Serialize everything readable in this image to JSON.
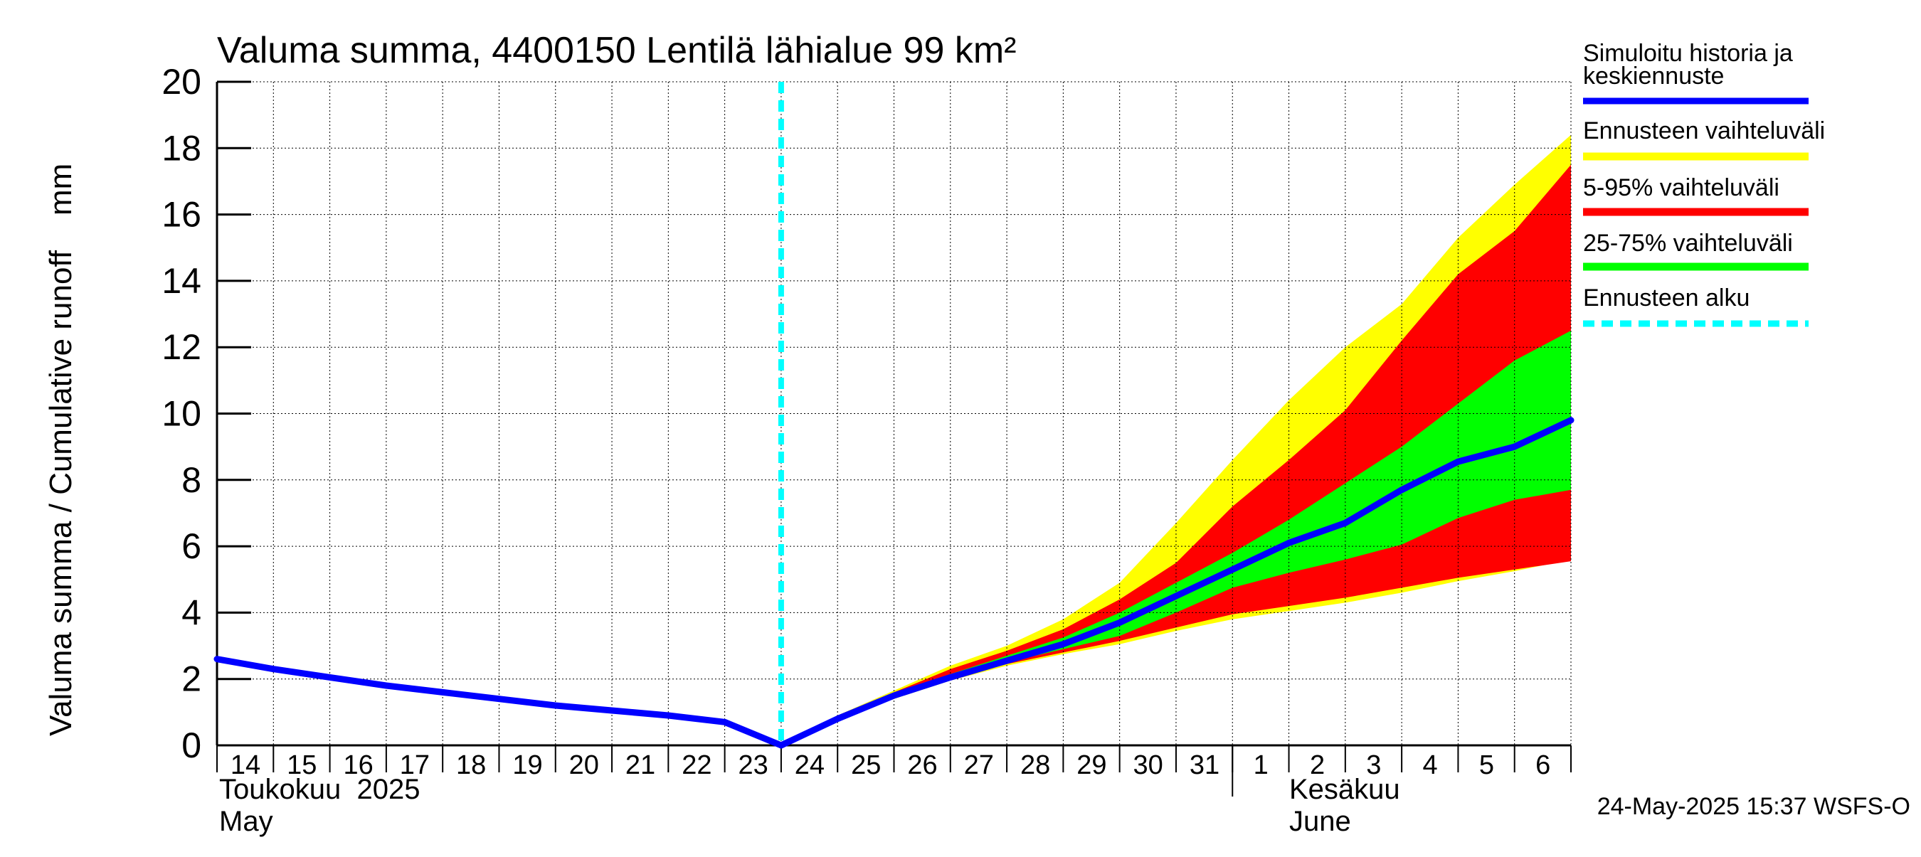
{
  "chart_data": {
    "type": "area",
    "title": "Valuma summa, 4400150 Lentilä lähialue 99 km²",
    "ylabel": "Valuma summa / Cumulative runoff    mm",
    "ylim": [
      0,
      20
    ],
    "y_ticks": [
      "0",
      "2",
      "4",
      "6",
      "8",
      "10",
      "12",
      "14",
      "16",
      "18",
      "20"
    ],
    "x_tick_labels": [
      "14",
      "15",
      "16",
      "17",
      "18",
      "19",
      "20",
      "21",
      "22",
      "23",
      "24",
      "25",
      "26",
      "27",
      "28",
      "29",
      "30",
      "31",
      "1",
      "2",
      "3",
      "4",
      "5",
      "6"
    ],
    "x_day_range": [
      14,
      38
    ],
    "month_labels": {
      "may_fi": "Toukokuu  2025",
      "may_en": "May",
      "june_fi": "Kesäkuu",
      "june_en": "June"
    },
    "grid": true,
    "legend_position": "right",
    "legend": [
      {
        "label": "Simuloitu historia ja keskiennuste",
        "color": "#0000ff",
        "style": "solid"
      },
      {
        "label": "Ennusteen vaihteluväli",
        "color": "#ffff00",
        "style": "solid"
      },
      {
        "label": "5-95% vaihteluväli",
        "color": "#ff0000",
        "style": "solid"
      },
      {
        "label": "25-75% vaihteluväli",
        "color": "#00ff00",
        "style": "solid"
      },
      {
        "label": "Ennusteen alku",
        "color": "#00ffff",
        "style": "dashed"
      }
    ],
    "forecast_start_day": 24,
    "history": {
      "x": [
        14,
        15,
        16,
        17,
        18,
        19,
        20,
        21,
        22,
        23,
        24
      ],
      "y": [
        2.6,
        2.3,
        2.05,
        1.8,
        1.6,
        1.4,
        1.2,
        1.05,
        0.9,
        0.7,
        0.0
      ]
    },
    "forecast": {
      "x": [
        24,
        25,
        26,
        27,
        28,
        29,
        30,
        31,
        32,
        33,
        34,
        35,
        36,
        37,
        38
      ],
      "median": [
        0.0,
        0.8,
        1.5,
        2.05,
        2.55,
        3.05,
        3.7,
        4.5,
        5.3,
        6.1,
        6.7,
        7.7,
        8.55,
        9.0,
        9.8
      ],
      "range_min": [
        0.0,
        0.75,
        1.4,
        1.95,
        2.4,
        2.75,
        3.05,
        3.45,
        3.8,
        4.05,
        4.3,
        4.6,
        4.95,
        5.25,
        5.6
      ],
      "range_max": [
        0.0,
        0.9,
        1.65,
        2.4,
        3.0,
        3.8,
        4.9,
        6.7,
        8.6,
        10.4,
        12.0,
        13.3,
        15.3,
        16.9,
        18.4
      ],
      "p05": [
        0.0,
        0.8,
        1.45,
        2.0,
        2.45,
        2.8,
        3.15,
        3.55,
        3.95,
        4.2,
        4.45,
        4.75,
        5.05,
        5.3,
        5.55
      ],
      "p95": [
        0.0,
        0.85,
        1.6,
        2.3,
        2.85,
        3.5,
        4.4,
        5.5,
        7.2,
        8.6,
        10.1,
        12.2,
        14.2,
        15.5,
        17.5
      ],
      "p25": [
        0.0,
        0.8,
        1.5,
        2.0,
        2.5,
        2.9,
        3.3,
        4.0,
        4.75,
        5.2,
        5.6,
        6.05,
        6.85,
        7.4,
        7.7
      ],
      "p75": [
        0.0,
        0.82,
        1.55,
        2.15,
        2.7,
        3.25,
        4.0,
        4.9,
        5.8,
        6.8,
        7.9,
        9.0,
        10.3,
        11.6,
        12.5
      ]
    },
    "footer": "24-May-2025 15:37 WSFS-O"
  }
}
